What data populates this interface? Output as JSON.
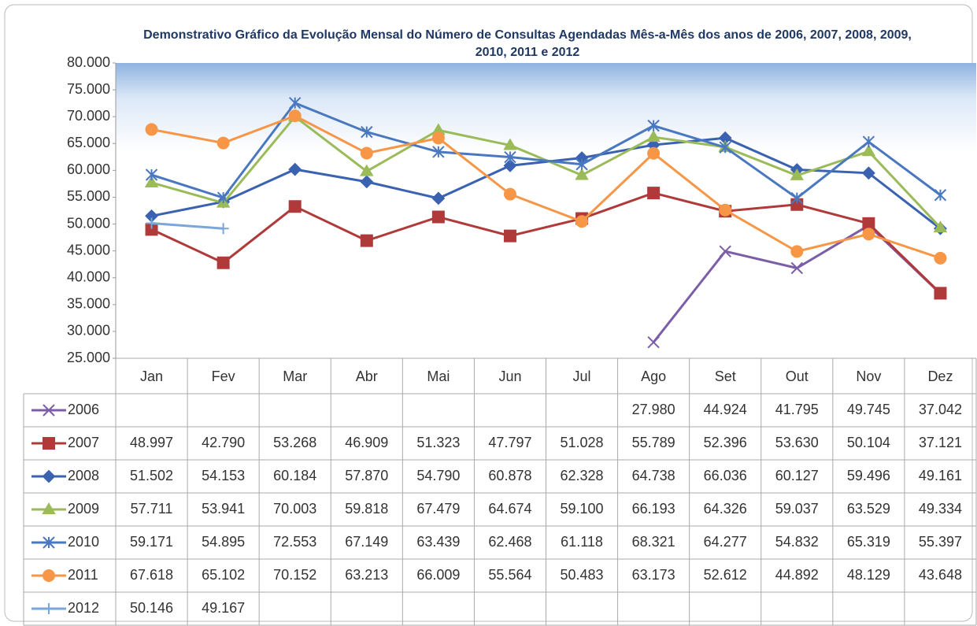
{
  "chart_data": {
    "type": "line",
    "title": "Demonstrativo Gráfico da Evolução Mensal do Número de Consultas Agendadas Mês-a-Mês dos anos de 2006, 2007, 2008, 2009, 2010, 2011 e 2012",
    "categories": [
      "Jan",
      "Fev",
      "Mar",
      "Abr",
      "Mai",
      "Jun",
      "Jul",
      "Ago",
      "Set",
      "Out",
      "Nov",
      "Dez"
    ],
    "ylim": [
      25000,
      80000
    ],
    "yticks": [
      {
        "value": 25000,
        "label": "25.000"
      },
      {
        "value": 30000,
        "label": "30.000"
      },
      {
        "value": 35000,
        "label": "35.000"
      },
      {
        "value": 40000,
        "label": "40.000"
      },
      {
        "value": 45000,
        "label": "45.000"
      },
      {
        "value": 50000,
        "label": "50.000"
      },
      {
        "value": 55000,
        "label": "55.000"
      },
      {
        "value": 60000,
        "label": "60.000"
      },
      {
        "value": 65000,
        "label": "65.000"
      },
      {
        "value": 70000,
        "label": "70.000"
      },
      {
        "value": 75000,
        "label": "75.000"
      },
      {
        "value": 80000,
        "label": "80.000"
      }
    ],
    "series": [
      {
        "name": "2006",
        "color": "#7b5ea7",
        "marker": "x",
        "values": [
          null,
          null,
          null,
          null,
          null,
          null,
          null,
          27980,
          44924,
          41795,
          49745,
          37042
        ],
        "value_labels": [
          null,
          null,
          null,
          null,
          null,
          null,
          null,
          "27.980",
          "44.924",
          "41.795",
          "49.745",
          "37.042"
        ]
      },
      {
        "name": "2007",
        "color": "#b03a3a",
        "marker": "square",
        "values": [
          48997,
          42790,
          53268,
          46909,
          51323,
          47797,
          51028,
          55789,
          52396,
          53630,
          50104,
          37121
        ],
        "value_labels": [
          "48.997",
          "42.790",
          "53.268",
          "46.909",
          "51.323",
          "47.797",
          "51.028",
          "55.789",
          "52.396",
          "53.630",
          "50.104",
          "37.121"
        ]
      },
      {
        "name": "2008",
        "color": "#3a62b0",
        "marker": "diamond",
        "values": [
          51502,
          54153,
          60184,
          57870,
          54790,
          60878,
          62328,
          64738,
          66036,
          60127,
          59496,
          49161
        ],
        "value_labels": [
          "51.502",
          "54.153",
          "60.184",
          "57.870",
          "54.790",
          "60.878",
          "62.328",
          "64.738",
          "66.036",
          "60.127",
          "59.496",
          "49.161"
        ]
      },
      {
        "name": "2009",
        "color": "#9bbb59",
        "marker": "triangle",
        "values": [
          57711,
          53941,
          70003,
          59818,
          67479,
          64674,
          59100,
          66193,
          64326,
          59037,
          63529,
          49334
        ],
        "value_labels": [
          "57.711",
          "53.941",
          "70.003",
          "59.818",
          "67.479",
          "64.674",
          "59.100",
          "66.193",
          "64.326",
          "59.037",
          "63.529",
          "49.334"
        ]
      },
      {
        "name": "2010",
        "color": "#4a78c0",
        "marker": "asterisk",
        "values": [
          59171,
          54895,
          72553,
          67149,
          63439,
          62468,
          61118,
          68321,
          64277,
          54832,
          65319,
          55397
        ],
        "value_labels": [
          "59.171",
          "54.895",
          "72.553",
          "67.149",
          "63.439",
          "62.468",
          "61.118",
          "68.321",
          "64.277",
          "54.832",
          "65.319",
          "55.397"
        ]
      },
      {
        "name": "2011",
        "color": "#f79646",
        "marker": "circle",
        "values": [
          67618,
          65102,
          70152,
          63213,
          66009,
          55564,
          50483,
          63173,
          52612,
          44892,
          48129,
          43648
        ],
        "value_labels": [
          "67.618",
          "65.102",
          "70.152",
          "63.213",
          "66.009",
          "55.564",
          "50.483",
          "63.173",
          "52.612",
          "44.892",
          "48.129",
          "43.648"
        ]
      },
      {
        "name": "2012",
        "color": "#7aa6d8",
        "marker": "plus",
        "values": [
          50146,
          49167,
          null,
          null,
          null,
          null,
          null,
          null,
          null,
          null,
          null,
          null
        ],
        "value_labels": [
          "50.146",
          "49.167",
          null,
          null,
          null,
          null,
          null,
          null,
          null,
          null,
          null,
          null
        ]
      }
    ]
  }
}
